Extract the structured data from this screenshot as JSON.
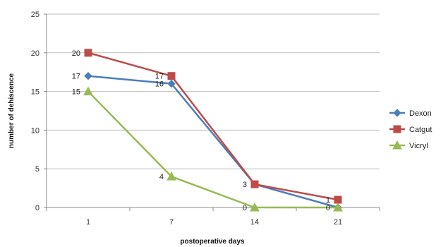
{
  "chart_data": {
    "type": "line",
    "xlabel": "postoperative days",
    "ylabel": "number of dehiscence",
    "categories": [
      "1",
      "7",
      "14",
      "21"
    ],
    "ylim": [
      0,
      25
    ],
    "yticks": [
      "0",
      "5",
      "10",
      "15",
      "20",
      "25"
    ],
    "grid": true,
    "legend_position": "right",
    "series": [
      {
        "name": "Dexon",
        "color": "#4a7ebb",
        "marker": "diamond",
        "values": [
          17,
          16,
          3,
          0
        ]
      },
      {
        "name": "Catgut",
        "color": "#be4b48",
        "marker": "square",
        "values": [
          20,
          17,
          3,
          1
        ]
      },
      {
        "name": "Vicryl",
        "color": "#98b954",
        "marker": "triangle",
        "values": [
          15,
          4,
          0,
          0
        ]
      }
    ],
    "data_labels": [
      {
        "series": "Catgut",
        "index": 0,
        "text": "20"
      },
      {
        "series": "Dexon",
        "index": 0,
        "text": "17"
      },
      {
        "series": "Vicryl",
        "index": 0,
        "text": "15"
      },
      {
        "series": "Catgut",
        "index": 1,
        "text": "17"
      },
      {
        "series": "Dexon",
        "index": 1,
        "text": "16"
      },
      {
        "series": "Vicryl",
        "index": 1,
        "text": "4"
      },
      {
        "series": "Dexon",
        "index": 2,
        "text": "3"
      },
      {
        "series": "Vicryl",
        "index": 2,
        "text": "0"
      },
      {
        "series": "Catgut",
        "index": 3,
        "text": "1"
      },
      {
        "series": "Dexon",
        "index": 3,
        "text": "0"
      }
    ]
  }
}
